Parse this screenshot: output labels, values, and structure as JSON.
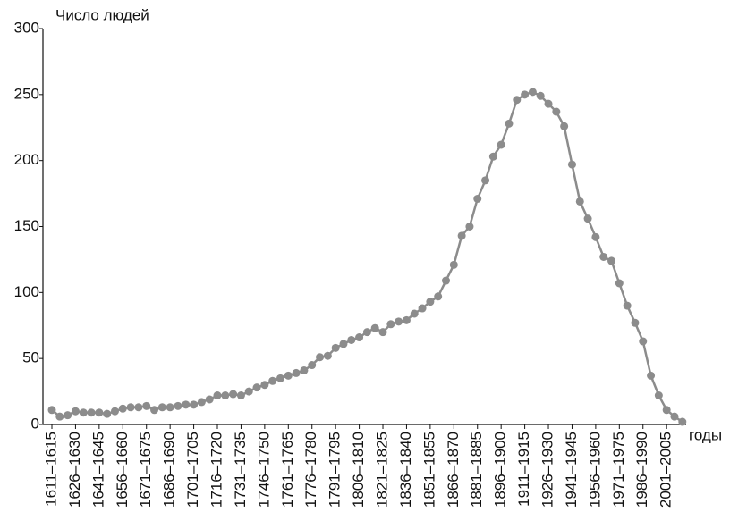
{
  "chart_data": {
    "type": "line",
    "y_label": "Число людей",
    "x_label": "годы",
    "categories": [
      "1611–1615",
      null,
      null,
      "1626–1630",
      null,
      null,
      "1641–1645",
      null,
      null,
      "1656–1660",
      null,
      null,
      "1671–1675",
      null,
      null,
      "1686–1690",
      null,
      null,
      "1701–1705",
      null,
      null,
      "1716–1720",
      null,
      null,
      "1731–1735",
      null,
      null,
      "1746–1750",
      null,
      null,
      "1761–1765",
      null,
      null,
      "1776–1780",
      null,
      null,
      "1791–1795",
      null,
      null,
      "1806–1810",
      null,
      null,
      "1821–1825",
      null,
      null,
      "1836–1840",
      null,
      null,
      "1851–1855",
      null,
      null,
      "1866–1870",
      null,
      null,
      "1881–1885",
      null,
      null,
      "1896–1900",
      null,
      null,
      "1911–1915",
      null,
      null,
      "1926–1930",
      null,
      null,
      "1941–1945",
      null,
      null,
      "1956–1960",
      null,
      null,
      "1971–1975",
      null,
      null,
      "1986–1990",
      null,
      null,
      "2001–2005",
      null,
      null
    ],
    "values": [
      11,
      6,
      7,
      10,
      9,
      9,
      9,
      8,
      10,
      12,
      13,
      13,
      14,
      11,
      13,
      13,
      14,
      15,
      15,
      17,
      19,
      22,
      22,
      23,
      22,
      25,
      28,
      30,
      33,
      35,
      37,
      39,
      41,
      45,
      51,
      52,
      58,
      61,
      64,
      66,
      70,
      73,
      70,
      76,
      78,
      79,
      84,
      88,
      93,
      97,
      109,
      121,
      143,
      150,
      171,
      185,
      203,
      212,
      228,
      246,
      250,
      252,
      249,
      243,
      237,
      226,
      197,
      169,
      156,
      142,
      127,
      124,
      107,
      90,
      77,
      63,
      37,
      22,
      11,
      6,
      2
    ],
    "color": "#8c8c8c",
    "ylim": [
      0,
      300
    ],
    "yticks": [
      0,
      50,
      100,
      150,
      200,
      250,
      300
    ]
  }
}
